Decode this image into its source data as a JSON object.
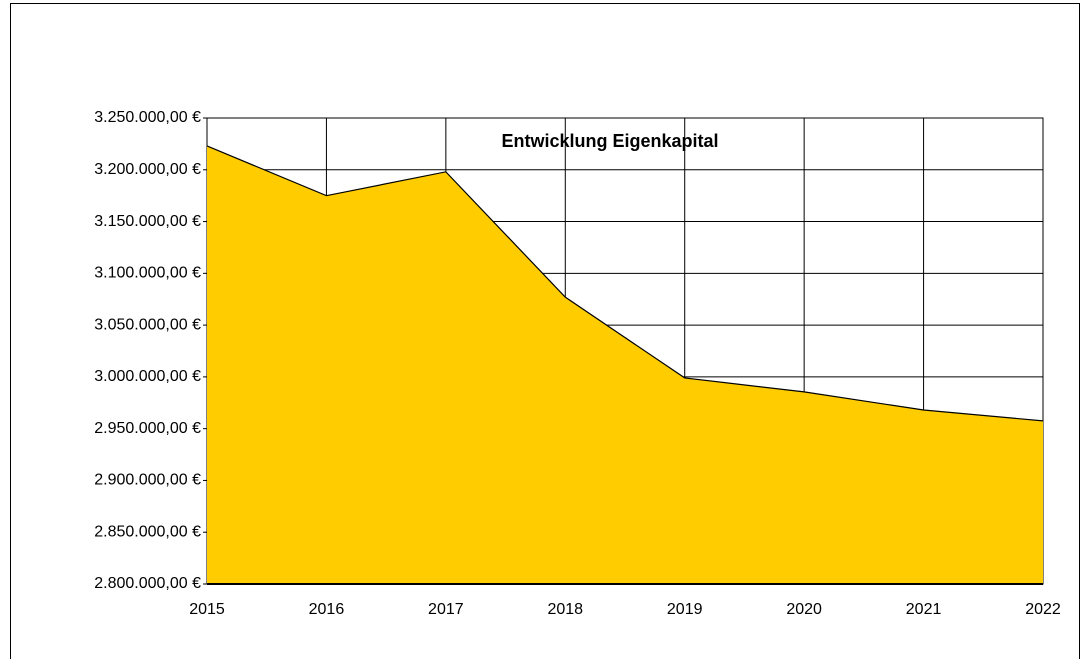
{
  "chart_data": {
    "type": "area",
    "title": "Entwicklung Eigenkapital",
    "categories": [
      "2015",
      "2016",
      "2017",
      "2018",
      "2019",
      "2020",
      "2021",
      "2022"
    ],
    "series": [
      {
        "name": "Eigenkapital",
        "color": "#ffcc00",
        "values": [
          3223000,
          3175000,
          3198000,
          3077000,
          2999000,
          2985500,
          2968000,
          2957500
        ]
      }
    ],
    "ylim": [
      2800000,
      3250000
    ],
    "yticks": [
      {
        "value": 2800000,
        "label": "2.800.000,00 €"
      },
      {
        "value": 2850000,
        "label": "2.850.000,00 €"
      },
      {
        "value": 2900000,
        "label": "2.900.000,00 €"
      },
      {
        "value": 2950000,
        "label": "2.950.000,00 €"
      },
      {
        "value": 3000000,
        "label": "3.000.000,00 €"
      },
      {
        "value": 3050000,
        "label": "3.050.000,00 €"
      },
      {
        "value": 3100000,
        "label": "3.100.000,00 €"
      },
      {
        "value": 3150000,
        "label": "3.150.000,00 €"
      },
      {
        "value": 3200000,
        "label": "3.200.000,00 €"
      },
      {
        "value": 3250000,
        "label": "3.250.000,00 €"
      }
    ],
    "grid": true
  }
}
